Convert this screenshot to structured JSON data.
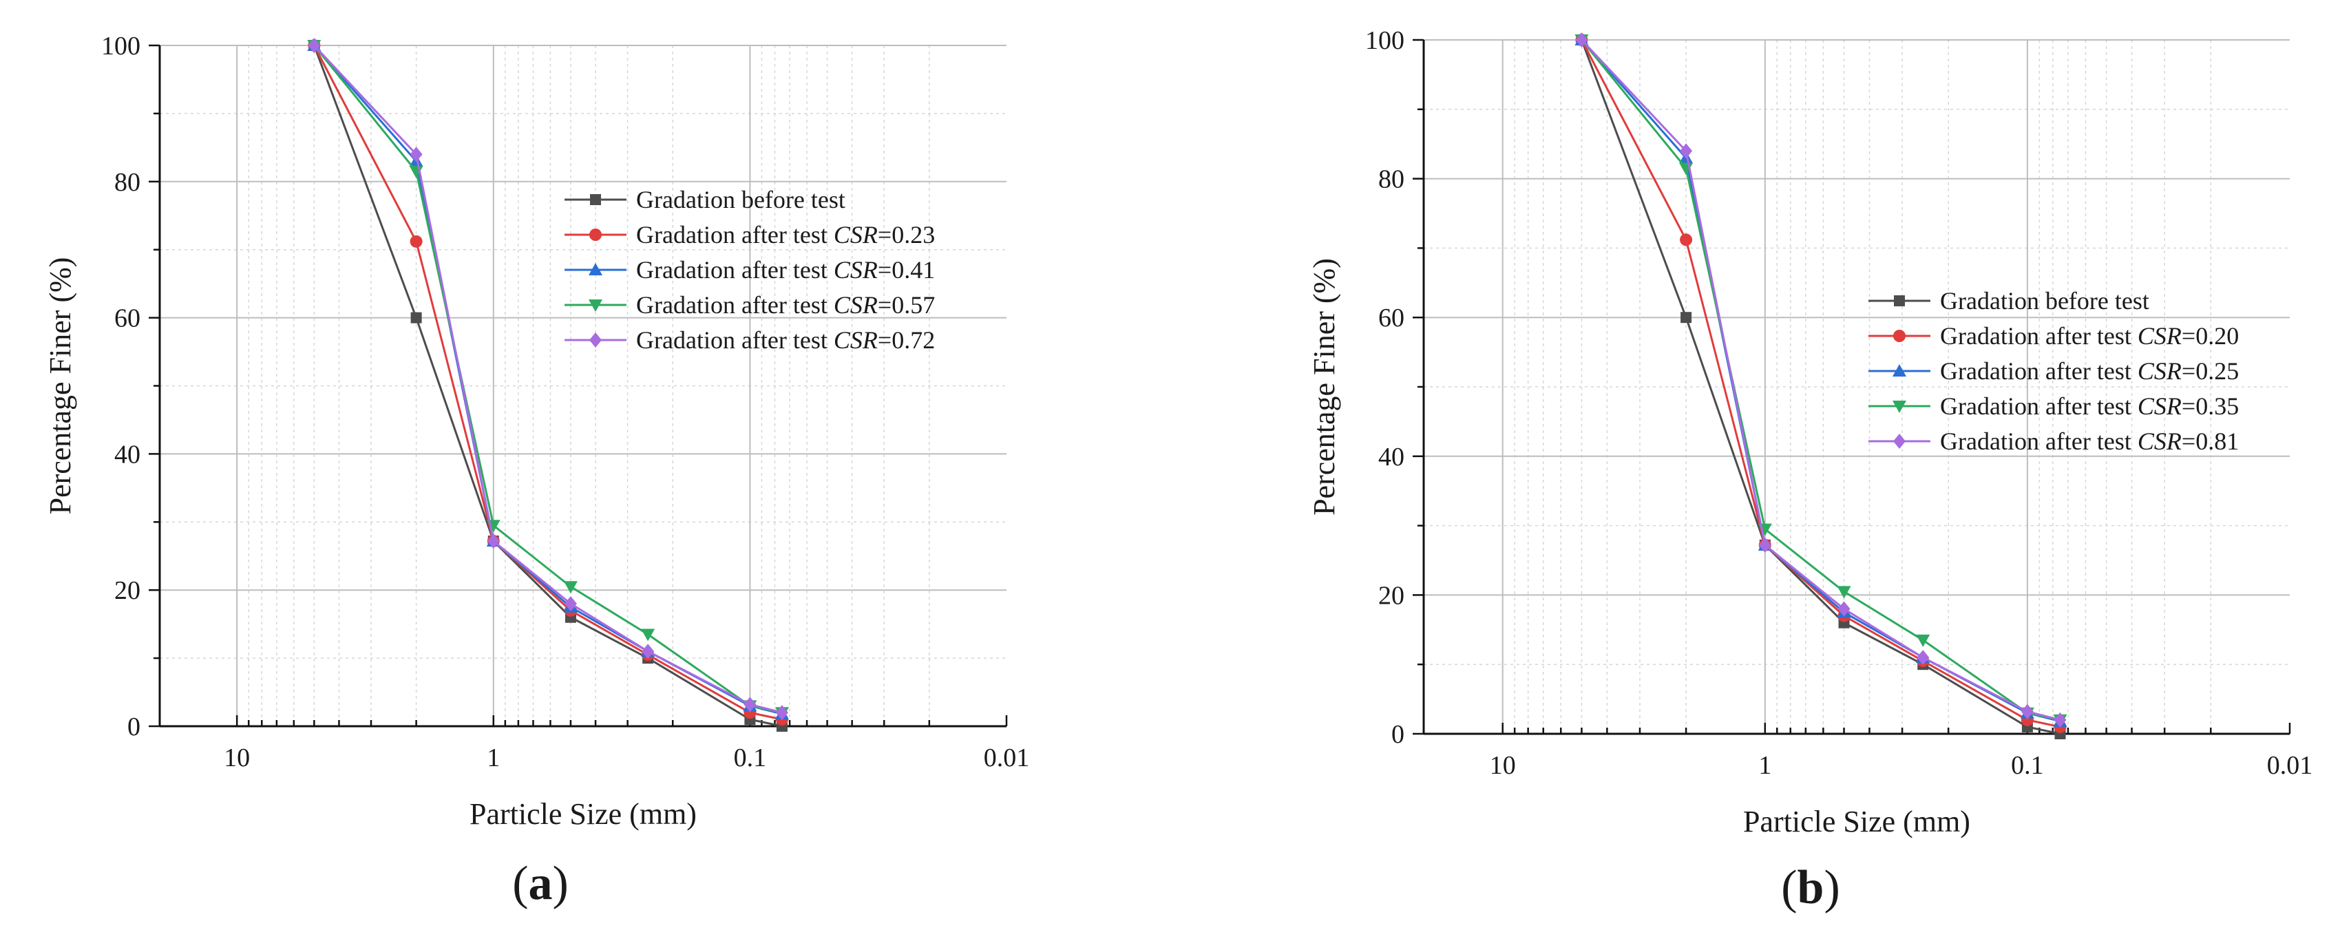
{
  "chart_data": [
    {
      "type": "line",
      "panel_label": "a",
      "xlabel": "Particle Size (mm)",
      "ylabel": "Percentage Finer (%)",
      "x_scale": "log",
      "x_axis_reversed": true,
      "xlim": [
        20,
        0.01
      ],
      "ylim": [
        0,
        100
      ],
      "xticks": [
        10,
        1,
        0.1,
        0.01
      ],
      "xtick_labels": [
        "10",
        "1",
        "0.1",
        "0.01"
      ],
      "yticks": [
        0,
        20,
        40,
        60,
        80,
        100
      ],
      "ytick_labels": [
        "0",
        "20",
        "40",
        "60",
        "80",
        "100"
      ],
      "grid": true,
      "legend_position": "upper-right-center",
      "series": [
        {
          "name": "Gradation before test",
          "prefix": "Gradation before test",
          "csr": "",
          "color": "#4d4d4d",
          "marker": "square",
          "x": [
            5,
            2,
            1,
            0.5,
            0.25,
            0.1,
            0.075
          ],
          "y": [
            100,
            60,
            27.2,
            16,
            10,
            1,
            0
          ]
        },
        {
          "name": "Gradation after test CSR=0.23",
          "prefix": "Gradation after test ",
          "csr": "=0.23",
          "color": "#e03c3c",
          "marker": "circle",
          "x": [
            5,
            2,
            1,
            0.5,
            0.25,
            0.1,
            0.075
          ],
          "y": [
            100,
            71.2,
            27.2,
            17,
            10.5,
            2,
            1
          ]
        },
        {
          "name": "Gradation after test CSR=0.41",
          "prefix": "Gradation after test ",
          "csr": "=0.41",
          "color": "#2a6fd6",
          "marker": "triangle-up",
          "x": [
            5,
            2,
            1,
            0.5,
            0.25,
            0.1,
            0.075
          ],
          "y": [
            100,
            83,
            27.2,
            17.5,
            11,
            3,
            1.8
          ]
        },
        {
          "name": "Gradation after test CSR=0.57",
          "prefix": "Gradation after test ",
          "csr": "=0.57",
          "color": "#2eaa5e",
          "marker": "triangle-down",
          "x": [
            5,
            2,
            1,
            0.5,
            0.25,
            0.1,
            0.075
          ],
          "y": [
            100,
            81.5,
            29.5,
            20.5,
            13.5,
            3,
            2
          ]
        },
        {
          "name": "Gradation after test CSR=0.72",
          "prefix": "Gradation after test ",
          "csr": "=0.72",
          "color": "#a86ce0",
          "marker": "diamond",
          "x": [
            5,
            2,
            1,
            0.5,
            0.25,
            0.1,
            0.075
          ],
          "y": [
            100,
            84,
            27.2,
            18,
            11,
            3.2,
            2
          ]
        }
      ]
    },
    {
      "type": "line",
      "panel_label": "b",
      "xlabel": "Particle Size (mm)",
      "ylabel": "Percentage Finer (%)",
      "x_scale": "log",
      "x_axis_reversed": true,
      "xlim": [
        20,
        0.01
      ],
      "ylim": [
        0,
        100
      ],
      "xticks": [
        10,
        1,
        0.1,
        0.01
      ],
      "xtick_labels": [
        "10",
        "1",
        "0.1",
        "0.01"
      ],
      "yticks": [
        0,
        20,
        40,
        60,
        80,
        100
      ],
      "ytick_labels": [
        "0",
        "20",
        "40",
        "60",
        "80",
        "100"
      ],
      "grid": true,
      "legend_position": "center-right",
      "series": [
        {
          "name": "Gradation before test",
          "prefix": "Gradation before test",
          "csr": "",
          "color": "#4d4d4d",
          "marker": "square",
          "x": [
            5,
            2,
            1,
            0.5,
            0.25,
            0.1,
            0.075
          ],
          "y": [
            100,
            60,
            27.2,
            16,
            10,
            1,
            0
          ]
        },
        {
          "name": "Gradation after test CSR=0.20",
          "prefix": "Gradation after test ",
          "csr": "=0.20",
          "color": "#e03c3c",
          "marker": "circle",
          "x": [
            5,
            2,
            1,
            0.5,
            0.25,
            0.1,
            0.075
          ],
          "y": [
            100,
            71.2,
            27.2,
            17,
            10.5,
            2,
            1
          ]
        },
        {
          "name": "Gradation after test CSR=0.25",
          "prefix": "Gradation after test ",
          "csr": "=0.25",
          "color": "#2a6fd6",
          "marker": "triangle-up",
          "x": [
            5,
            2,
            1,
            0.5,
            0.25,
            0.1,
            0.075
          ],
          "y": [
            100,
            83,
            27.2,
            17.5,
            11,
            3,
            1.8
          ]
        },
        {
          "name": "Gradation after test CSR=0.35",
          "prefix": "Gradation after test ",
          "csr": "=0.35",
          "color": "#2eaa5e",
          "marker": "triangle-down",
          "x": [
            5,
            2,
            1,
            0.5,
            0.25,
            0.1,
            0.075
          ],
          "y": [
            100,
            81.5,
            29.5,
            20.5,
            13.5,
            3,
            2
          ]
        },
        {
          "name": "Gradation after test CSR=0.81",
          "prefix": "Gradation after test ",
          "csr": "=0.81",
          "color": "#a86ce0",
          "marker": "diamond",
          "x": [
            5,
            2,
            1,
            0.5,
            0.25,
            0.1,
            0.075
          ],
          "y": [
            100,
            84,
            27.2,
            18,
            11,
            3.2,
            2
          ]
        }
      ]
    }
  ]
}
